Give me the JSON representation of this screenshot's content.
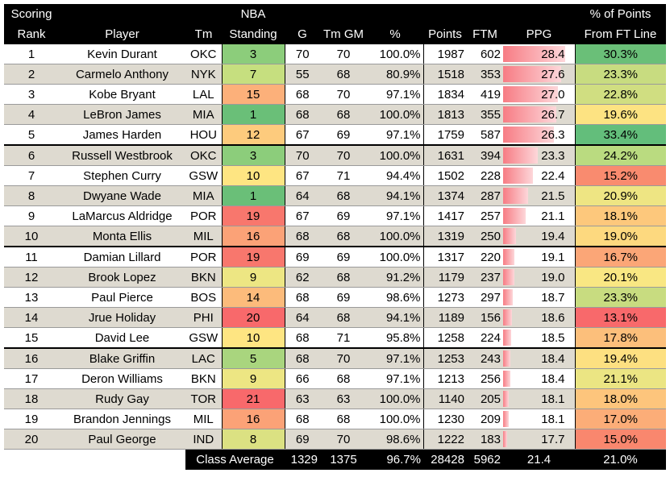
{
  "headers": {
    "top": {
      "scoring": "Scoring",
      "nba": "NBA",
      "pct_points": "% of Points"
    },
    "bottom": {
      "rank": "Rank",
      "player": "Player",
      "team": "Tm",
      "standing": "Standing",
      "g": "G",
      "tm_gm": "Tm GM",
      "pct": "%",
      "points": "Points",
      "ftm": "FTM",
      "ppg": "PPG",
      "from_ft": "From FT Line"
    }
  },
  "rows": [
    {
      "rank": "1",
      "player": "Kevin Durant",
      "team": "OKC",
      "standing": "3",
      "g": "70",
      "tm_gm": "70",
      "pct": "100.0%",
      "points": "1987",
      "ftm": "602",
      "ppg": "28.4",
      "ft_pct": "30.3%",
      "standing_color": "#8ccd7b",
      "ft_color": "#6abf78"
    },
    {
      "rank": "2",
      "player": "Carmelo Anthony",
      "team": "NYK",
      "standing": "7",
      "g": "55",
      "tm_gm": "68",
      "pct": "80.9%",
      "points": "1518",
      "ftm": "353",
      "ppg": "27.6",
      "ft_pct": "23.3%",
      "standing_color": "#c6df7f",
      "ft_color": "#c8dc80"
    },
    {
      "rank": "3",
      "player": "Kobe Bryant",
      "team": "LAL",
      "standing": "15",
      "g": "68",
      "tm_gm": "70",
      "pct": "97.1%",
      "points": "1834",
      "ftm": "419",
      "ppg": "27.0",
      "ft_pct": "22.8%",
      "standing_color": "#fcb07a",
      "ft_color": "#d0de81"
    },
    {
      "rank": "4",
      "player": "LeBron James",
      "team": "MIA",
      "standing": "1",
      "g": "68",
      "tm_gm": "68",
      "pct": "100.0%",
      "points": "1813",
      "ftm": "355",
      "ppg": "26.7",
      "ft_pct": "19.6%",
      "standing_color": "#6abf78",
      "ft_color": "#fde382"
    },
    {
      "rank": "5",
      "player": "James Harden",
      "team": "HOU",
      "standing": "12",
      "g": "67",
      "tm_gm": "69",
      "pct": "97.1%",
      "points": "1759",
      "ftm": "587",
      "ppg": "26.3",
      "ft_pct": "33.4%",
      "standing_color": "#fdcb7d",
      "ft_color": "#63be7b"
    },
    {
      "rank": "6",
      "player": "Russell Westbrook",
      "team": "OKC",
      "standing": "3",
      "g": "70",
      "tm_gm": "70",
      "pct": "100.0%",
      "points": "1631",
      "ftm": "394",
      "ppg": "23.3",
      "ft_pct": "24.2%",
      "standing_color": "#8ccd7b",
      "ft_color": "#badb80"
    },
    {
      "rank": "7",
      "player": "Stephen Curry",
      "team": "GSW",
      "standing": "10",
      "g": "67",
      "tm_gm": "71",
      "pct": "94.4%",
      "points": "1502",
      "ftm": "228",
      "ppg": "22.4",
      "ft_pct": "15.2%",
      "standing_color": "#fee582",
      "ft_color": "#f98b6f"
    },
    {
      "rank": "8",
      "player": "Dwyane Wade",
      "team": "MIA",
      "standing": "1",
      "g": "64",
      "tm_gm": "68",
      "pct": "94.1%",
      "points": "1374",
      "ftm": "287",
      "ppg": "21.5",
      "ft_pct": "20.9%",
      "standing_color": "#6abf78",
      "ft_color": "#eee583"
    },
    {
      "rank": "9",
      "player": "LaMarcus Aldridge",
      "team": "POR",
      "standing": "19",
      "g": "67",
      "tm_gm": "69",
      "pct": "97.1%",
      "points": "1417",
      "ftm": "257",
      "ppg": "21.1",
      "ft_pct": "18.1%",
      "standing_color": "#f8776d",
      "ft_color": "#fdc87c"
    },
    {
      "rank": "10",
      "player": "Monta Ellis",
      "team": "MIL",
      "standing": "16",
      "g": "68",
      "tm_gm": "68",
      "pct": "100.0%",
      "points": "1319",
      "ftm": "250",
      "ppg": "19.4",
      "ft_pct": "19.0%",
      "standing_color": "#fba277",
      "ft_color": "#fdd97f"
    },
    {
      "rank": "11",
      "player": "Damian Lillard",
      "team": "POR",
      "standing": "19",
      "g": "69",
      "tm_gm": "69",
      "pct": "100.0%",
      "points": "1317",
      "ftm": "220",
      "ppg": "19.1",
      "ft_pct": "16.7%",
      "standing_color": "#f8776d",
      "ft_color": "#fba677"
    },
    {
      "rank": "12",
      "player": "Brook Lopez",
      "team": "BKN",
      "standing": "9",
      "g": "62",
      "tm_gm": "68",
      "pct": "91.2%",
      "points": "1179",
      "ftm": "237",
      "ppg": "19.0",
      "ft_pct": "20.1%",
      "standing_color": "#ede683",
      "ft_color": "#f9e783"
    },
    {
      "rank": "13",
      "player": "Paul Pierce",
      "team": "BOS",
      "standing": "14",
      "g": "68",
      "tm_gm": "69",
      "pct": "98.6%",
      "points": "1273",
      "ftm": "297",
      "ppg": "18.7",
      "ft_pct": "23.3%",
      "standing_color": "#fcbb7b",
      "ft_color": "#c8dc80"
    },
    {
      "rank": "14",
      "player": "Jrue Holiday",
      "team": "PHI",
      "standing": "20",
      "g": "64",
      "tm_gm": "68",
      "pct": "94.1%",
      "points": "1189",
      "ftm": "156",
      "ppg": "18.6",
      "ft_pct": "13.1%",
      "standing_color": "#f8696b",
      "ft_color": "#f8696b"
    },
    {
      "rank": "15",
      "player": "David Lee",
      "team": "GSW",
      "standing": "10",
      "g": "68",
      "tm_gm": "71",
      "pct": "95.8%",
      "points": "1258",
      "ftm": "224",
      "ppg": "18.5",
      "ft_pct": "17.8%",
      "standing_color": "#fee582",
      "ft_color": "#fcbf7b"
    },
    {
      "rank": "16",
      "player": "Blake Griffin",
      "team": "LAC",
      "standing": "5",
      "g": "68",
      "tm_gm": "70",
      "pct": "97.1%",
      "points": "1253",
      "ftm": "243",
      "ppg": "18.4",
      "ft_pct": "19.4%",
      "standing_color": "#a9d57e",
      "ft_color": "#fde081"
    },
    {
      "rank": "17",
      "player": "Deron Williams",
      "team": "BKN",
      "standing": "9",
      "g": "66",
      "tm_gm": "68",
      "pct": "97.1%",
      "points": "1213",
      "ftm": "256",
      "ppg": "18.4",
      "ft_pct": "21.1%",
      "standing_color": "#ede683",
      "ft_color": "#ebe583"
    },
    {
      "rank": "18",
      "player": "Rudy Gay",
      "team": "TOR",
      "standing": "21",
      "g": "63",
      "tm_gm": "63",
      "pct": "100.0%",
      "points": "1140",
      "ftm": "205",
      "ppg": "18.1",
      "ft_pct": "18.0%",
      "standing_color": "#f8696b",
      "ft_color": "#fdc57c"
    },
    {
      "rank": "19",
      "player": "Brandon Jennings",
      "team": "MIL",
      "standing": "16",
      "g": "68",
      "tm_gm": "68",
      "pct": "100.0%",
      "points": "1230",
      "ftm": "209",
      "ppg": "18.1",
      "ft_pct": "17.0%",
      "standing_color": "#fba277",
      "ft_color": "#fcad78"
    },
    {
      "rank": "20",
      "player": "Paul George",
      "team": "IND",
      "standing": "8",
      "g": "69",
      "tm_gm": "70",
      "pct": "98.6%",
      "points": "1222",
      "ftm": "183",
      "ppg": "17.7",
      "ft_pct": "15.0%",
      "standing_color": "#dbe182",
      "ft_color": "#f9876e"
    }
  ],
  "footer": {
    "label": "Class Average",
    "g": "1329",
    "tm_gm": "1375",
    "pct": "96.7%",
    "points": "28428",
    "ftm": "5962",
    "ppg": "21.4",
    "ft_pct": "21.0%"
  },
  "ppg_scale": {
    "min": 17.0,
    "max": 29.0
  }
}
